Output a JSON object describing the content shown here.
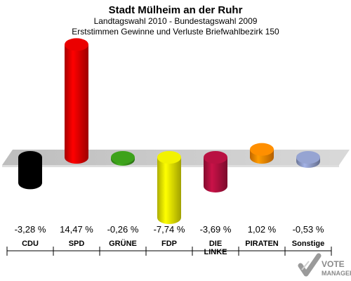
{
  "header": {
    "title": "Stadt Mülheim an der Ruhr",
    "subtitle": "Landtagswahl 2010 - Bundestagswahl 2009",
    "subtitle2": "Erststimmen Gewinne und Verluste Briefwahlbezirk 150"
  },
  "chart_data": {
    "type": "bar",
    "title": "Stadt Mülheim an der Ruhr",
    "categories": [
      "CDU",
      "SPD",
      "GRÜNE",
      "FDP",
      "DIE LINKE",
      "PIRATEN",
      "Sonstige"
    ],
    "values": [
      -3.28,
      14.47,
      -0.26,
      -7.74,
      -3.69,
      1.02,
      -0.53
    ],
    "value_labels": [
      "-3,28 %",
      "14,47 %",
      "-0,26 %",
      "-7,74 %",
      "-3,69 %",
      "1,02 %",
      "-0,53 %"
    ],
    "colors": [
      "#000000",
      "#e00000",
      "#3a9a1a",
      "#e6e600",
      "#b0103f",
      "#ff8800",
      "#8f9cc8"
    ],
    "unit": "%",
    "grid": false
  },
  "branding": {
    "logo_text": "VOTE MANAGER",
    "logo_text_line1": "VOTE",
    "logo_text_line2": "MANAGER"
  }
}
